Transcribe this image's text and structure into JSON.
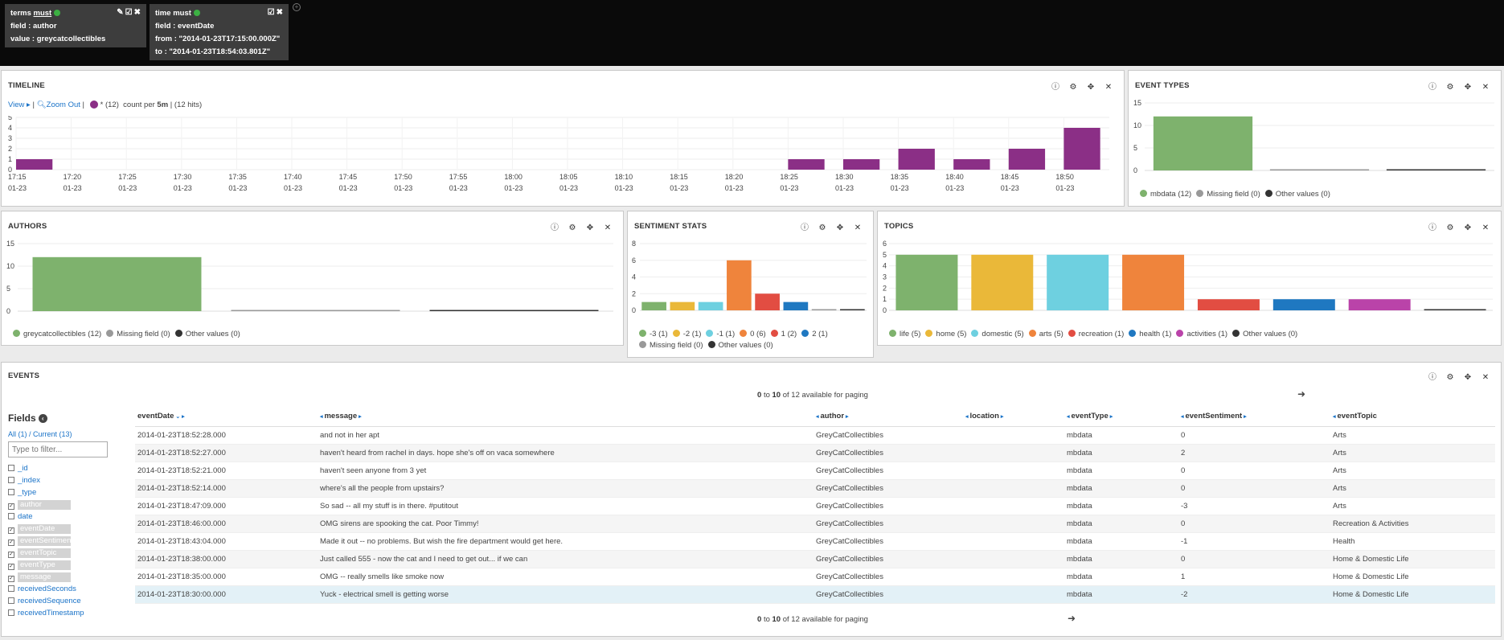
{
  "filters": [
    {
      "type_label": "terms",
      "mode": "must",
      "lines": [
        "field : author",
        "value : greycatcollectibles"
      ]
    },
    {
      "type_label": "time",
      "mode": "must",
      "lines": [
        "field : eventDate",
        "from : \"2014-01-23T17:15:00.000Z\"",
        "to : \"2014-01-23T18:54:03.801Z\""
      ]
    }
  ],
  "panel_tools": [
    "ⓘ",
    "⚙",
    "✥",
    "✕"
  ],
  "timeline": {
    "title": "TIMELINE",
    "view_label": "View ▸",
    "zoom_label": "Zoom Out",
    "series_label": "* (12)",
    "interval_text": "count per",
    "interval_value": "5m",
    "hits_text": "(12 hits)",
    "chart_data": {
      "type": "bar",
      "y_ticks": [
        "5",
        "4",
        "3",
        "2",
        "1",
        "0"
      ],
      "ylim": [
        0,
        5
      ],
      "x_ticks": [
        "17:15",
        "17:20",
        "17:25",
        "17:30",
        "17:35",
        "17:40",
        "17:45",
        "17:50",
        "17:55",
        "18:00",
        "18:05",
        "18:10",
        "18:15",
        "18:20",
        "18:25",
        "18:30",
        "18:35",
        "18:40",
        "18:45",
        "18:50"
      ],
      "x_date": "01-23",
      "series": [
        {
          "name": "*",
          "color": "#8b2f86",
          "points": [
            [
              0,
              1
            ],
            [
              14,
              1
            ],
            [
              15,
              1
            ],
            [
              16,
              2
            ],
            [
              17,
              1
            ],
            [
              18,
              2
            ],
            [
              19,
              4
            ]
          ]
        }
      ]
    }
  },
  "event_types": {
    "title": "EVENT TYPES",
    "chart_data": {
      "type": "bar",
      "y_ticks": [
        "15",
        "10",
        "5",
        "0"
      ],
      "ylim": [
        0,
        15
      ],
      "categories": [
        "mbdata (12)",
        "Missing field (0)",
        "Other values (0)"
      ],
      "values": [
        12,
        0,
        0
      ],
      "colors": [
        "#7eb26d",
        "#999999",
        "#333333"
      ]
    }
  },
  "authors": {
    "title": "AUTHORS",
    "chart_data": {
      "type": "bar",
      "y_ticks": [
        "15",
        "10",
        "5",
        "0"
      ],
      "ylim": [
        0,
        15
      ],
      "categories": [
        "greycatcollectibles (12)",
        "Missing field (0)",
        "Other values (0)"
      ],
      "values": [
        12,
        0,
        0
      ],
      "colors": [
        "#7eb26d",
        "#999999",
        "#333333"
      ]
    }
  },
  "sentiment": {
    "title": "SENTIMENT STATS",
    "chart_data": {
      "type": "bar",
      "y_ticks": [
        "8",
        "6",
        "4",
        "2",
        "0"
      ],
      "ylim": [
        0,
        8
      ],
      "categories": [
        "-3 (1)",
        "-2 (1)",
        "-1 (1)",
        "0 (6)",
        "1 (2)",
        "2 (1)",
        "Missing field (0)",
        "Other values (0)"
      ],
      "values": [
        1,
        1,
        1,
        6,
        2,
        1,
        0,
        0
      ],
      "colors": [
        "#7eb26d",
        "#eab839",
        "#6ed0e0",
        "#ef843c",
        "#e24d42",
        "#1f78c1",
        "#999999",
        "#333333"
      ]
    }
  },
  "topics": {
    "title": "TOPICS",
    "chart_data": {
      "type": "bar",
      "y_ticks": [
        "6",
        "5",
        "4",
        "3",
        "2",
        "1",
        "0"
      ],
      "ylim": [
        0,
        6
      ],
      "categories": [
        "life (5)",
        "home (5)",
        "domestic (5)",
        "arts (5)",
        "recreation (1)",
        "health (1)",
        "activities (1)",
        "Other values (0)"
      ],
      "values": [
        5,
        5,
        5,
        5,
        1,
        1,
        1,
        0
      ],
      "colors": [
        "#7eb26d",
        "#eab839",
        "#6ed0e0",
        "#ef843c",
        "#e24d42",
        "#1f78c1",
        "#ba43a9",
        "#333333"
      ]
    }
  },
  "events": {
    "title": "EVENTS",
    "paging": {
      "from": "0",
      "to_word": "to",
      "to": "10",
      "of_text": "of 12 available for paging"
    },
    "fields_title": "Fields",
    "fields_tabs": "All (1) / Current (13)",
    "filter_placeholder": "Type to filter...",
    "fields": [
      {
        "name": "_id",
        "checked": false
      },
      {
        "name": "_index",
        "checked": false
      },
      {
        "name": "_type",
        "checked": false
      },
      {
        "name": "author",
        "checked": true
      },
      {
        "name": "date",
        "checked": false
      },
      {
        "name": "eventDate",
        "checked": true
      },
      {
        "name": "eventSentiment",
        "checked": true
      },
      {
        "name": "eventTopic",
        "checked": true
      },
      {
        "name": "eventType",
        "checked": true
      },
      {
        "name": "message",
        "checked": true
      },
      {
        "name": "receivedSeconds",
        "checked": false
      },
      {
        "name": "receivedSequence",
        "checked": false
      },
      {
        "name": "receivedTimestamp",
        "checked": false
      }
    ],
    "columns": [
      "eventDate",
      "message",
      "author",
      "location",
      "eventType",
      "eventSentiment",
      "eventTopic"
    ],
    "rows": [
      [
        "2014-01-23T18:52:28.000",
        "and not in her apt",
        "GreyCatCollectibles",
        "",
        "mbdata",
        "0",
        "Arts"
      ],
      [
        "2014-01-23T18:52:27.000",
        "haven't heard from rachel in days. hope she's off on vaca somewhere",
        "GreyCatCollectibles",
        "",
        "mbdata",
        "2",
        "Arts"
      ],
      [
        "2014-01-23T18:52:21.000",
        "haven't seen anyone from 3 yet",
        "GreyCatCollectibles",
        "",
        "mbdata",
        "0",
        "Arts"
      ],
      [
        "2014-01-23T18:52:14.000",
        "where's all the people from upstairs?",
        "GreyCatCollectibles",
        "",
        "mbdata",
        "0",
        "Arts"
      ],
      [
        "2014-01-23T18:47:09.000",
        "So sad -- all my stuff is in there.  #putitout",
        "GreyCatCollectibles",
        "",
        "mbdata",
        "-3",
        "Arts"
      ],
      [
        "2014-01-23T18:46:00.000",
        "OMG sirens are spooking the cat. Poor Timmy!",
        "GreyCatCollectibles",
        "",
        "mbdata",
        "0",
        "Recreation & Activities"
      ],
      [
        "2014-01-23T18:43:04.000",
        "Made it out -- no problems. But wish the fire department would get here.",
        "GreyCatCollectibles",
        "",
        "mbdata",
        "-1",
        "Health"
      ],
      [
        "2014-01-23T18:38:00.000",
        "Just called 555 - now the cat and I need to get out... if we can",
        "GreyCatCollectibles",
        "",
        "mbdata",
        "0",
        "Home & Domestic Life"
      ],
      [
        "2014-01-23T18:35:00.000",
        "OMG -- really smells like smoke now",
        "GreyCatCollectibles",
        "",
        "mbdata",
        "1",
        "Home & Domestic Life"
      ],
      [
        "2014-01-23T18:30:00.000",
        "Yuck - electrical smell is getting worse",
        "GreyCatCollectibles",
        "",
        "mbdata",
        "-2",
        "Home & Domestic Life"
      ]
    ]
  }
}
